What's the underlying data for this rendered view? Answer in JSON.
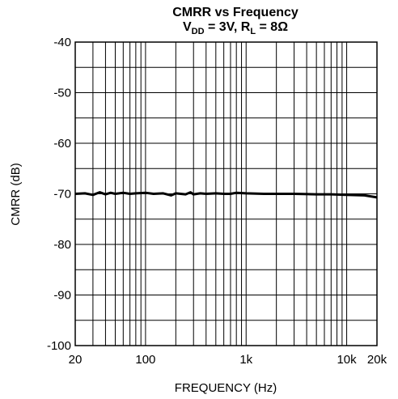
{
  "chart_data": {
    "type": "line",
    "title": "CMRR vs Frequency",
    "subtitle": {
      "vdd_main": "V",
      "vdd_sub": "DD",
      "vdd_rest": " = 3V, ",
      "rl_main": "R",
      "rl_sub": "L",
      "rl_rest": " = 8Ω"
    },
    "xlabel": "FREQUENCY (Hz)",
    "ylabel": "CMRR (dB)",
    "x_scale": "log",
    "xlim": [
      20,
      20000
    ],
    "ylim": [
      -100,
      -40
    ],
    "grid": true,
    "x_ticks": [
      {
        "value": 20,
        "label": "20"
      },
      {
        "value": 100,
        "label": "100"
      },
      {
        "value": 1000,
        "label": "1k"
      },
      {
        "value": 10000,
        "label": "10k"
      },
      {
        "value": 20000,
        "label": "20k"
      }
    ],
    "y_ticks": [
      {
        "value": -40,
        "label": "-40"
      },
      {
        "value": -50,
        "label": "-50"
      },
      {
        "value": -60,
        "label": "-60"
      },
      {
        "value": -70,
        "label": "-70"
      },
      {
        "value": -80,
        "label": "-80"
      },
      {
        "value": -90,
        "label": "-90"
      },
      {
        "value": -100,
        "label": "-100"
      }
    ],
    "series": [
      {
        "x": [
          20,
          25,
          30,
          35,
          40,
          45,
          50,
          60,
          70,
          80,
          100,
          120,
          150,
          180,
          200,
          250,
          280,
          300,
          350,
          400,
          500,
          600,
          700,
          800,
          1000,
          1500,
          2000,
          3000,
          5000,
          7000,
          10000,
          15000,
          20000
        ],
        "y": [
          -70.0,
          -69.9,
          -70.2,
          -69.7,
          -70.1,
          -69.8,
          -70.0,
          -69.8,
          -70.0,
          -69.9,
          -69.8,
          -70.0,
          -69.9,
          -70.3,
          -69.9,
          -70.1,
          -69.7,
          -70.1,
          -69.9,
          -70.0,
          -69.9,
          -70.0,
          -70.0,
          -69.8,
          -69.9,
          -70.0,
          -70.0,
          -70.0,
          -70.1,
          -70.1,
          -70.2,
          -70.3,
          -70.7
        ]
      }
    ]
  }
}
